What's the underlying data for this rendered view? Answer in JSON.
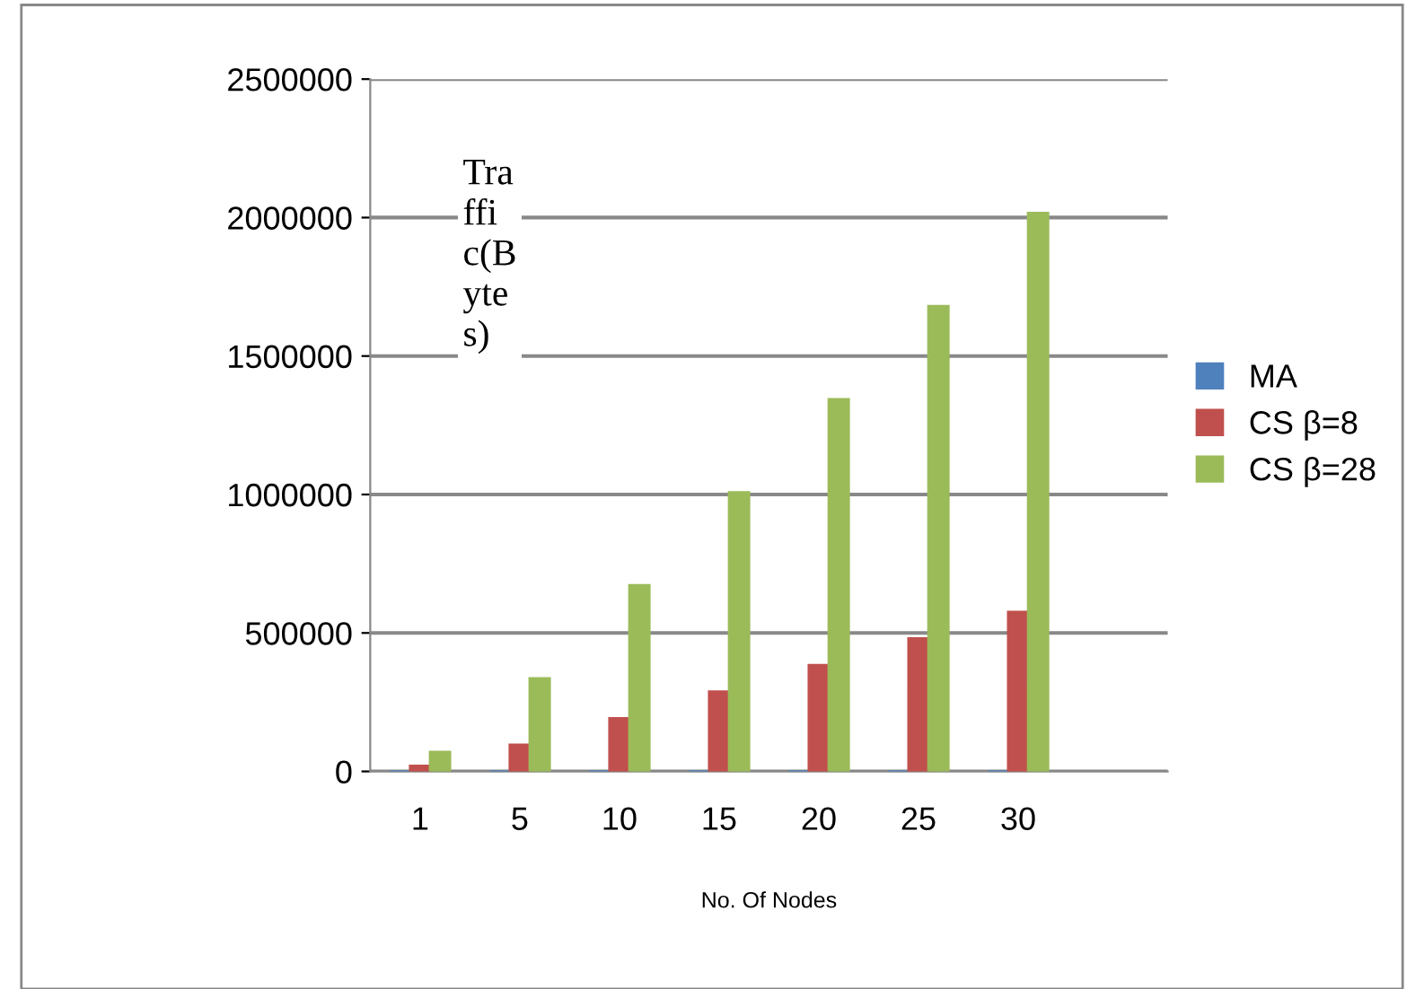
{
  "chart_data": {
    "type": "bar",
    "ylabel": "Traffic(Bytes)",
    "xlabel": "No. Of Nodes",
    "categories": [
      "1",
      "5",
      "10",
      "15",
      "20",
      "25",
      "30",
      null
    ],
    "series": [
      {
        "name": "MA",
        "color": "#4f81bd",
        "values": [
          0,
          0,
          0,
          0,
          0,
          0,
          0,
          null
        ]
      },
      {
        "name": "CS β=8",
        "color": "#c0504d",
        "values": [
          20000,
          96000,
          192000,
          288000,
          384000,
          480000,
          576000,
          null
        ]
      },
      {
        "name": "CS β=28",
        "color": "#9bbb59",
        "values": [
          70000,
          336000,
          672000,
          1008000,
          1344000,
          1680000,
          2016000,
          null
        ]
      }
    ],
    "ylim": [
      0,
      2500000
    ],
    "yticks": [
      0,
      500000,
      1000000,
      1500000,
      2000000,
      2500000
    ],
    "grid": "y",
    "legend": "right"
  }
}
